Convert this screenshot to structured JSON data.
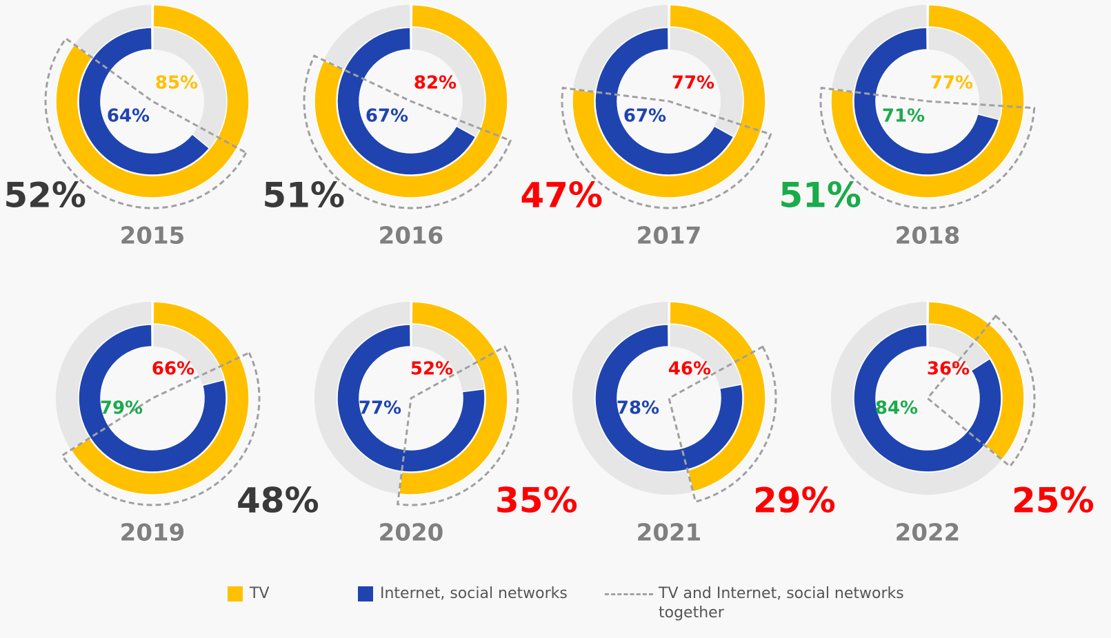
{
  "chart_data": {
    "type": "donut",
    "categories": [
      "2015",
      "2016",
      "2017",
      "2018",
      "2019",
      "2020",
      "2021",
      "2022"
    ],
    "series": [
      {
        "name": "TV",
        "color": "#ffc000",
        "values": [
          85,
          82,
          77,
          77,
          66,
          52,
          46,
          36
        ],
        "value_labels": [
          "85%",
          "82%",
          "77%",
          "77%",
          "66%",
          "52%",
          "46%",
          "36%"
        ],
        "label_colors": [
          "#ffc000",
          "#ff0000",
          "#ff0000",
          "#ffc000",
          "#ff0000",
          "#ff0000",
          "#ff0000",
          "#ff0000"
        ]
      },
      {
        "name": "Internet, social networks",
        "color": "#1f44b0",
        "values": [
          64,
          67,
          67,
          71,
          79,
          77,
          78,
          84
        ],
        "value_labels": [
          "64%",
          "67%",
          "67%",
          "71%",
          "79%",
          "77%",
          "78%",
          "84%"
        ],
        "label_colors": [
          "#1f44b0",
          "#1f44b0",
          "#1f44b0",
          "#1aab4b",
          "#1aab4b",
          "#1f44b0",
          "#1f44b0",
          "#1aab4b"
        ]
      },
      {
        "name": "TV and Internet, social networks together",
        "color": "#a0a0a0",
        "values": [
          52,
          51,
          47,
          51,
          48,
          35,
          29,
          25
        ],
        "value_labels": [
          "52%",
          "51%",
          "47%",
          "51%",
          "48%",
          "35%",
          "29%",
          "25%"
        ],
        "label_colors": [
          "#3a3a3a",
          "#3a3a3a",
          "#ff0000",
          "#1aab4b",
          "#3a3a3a",
          "#ff0000",
          "#ff0000",
          "#ff0000"
        ]
      }
    ]
  }
}
